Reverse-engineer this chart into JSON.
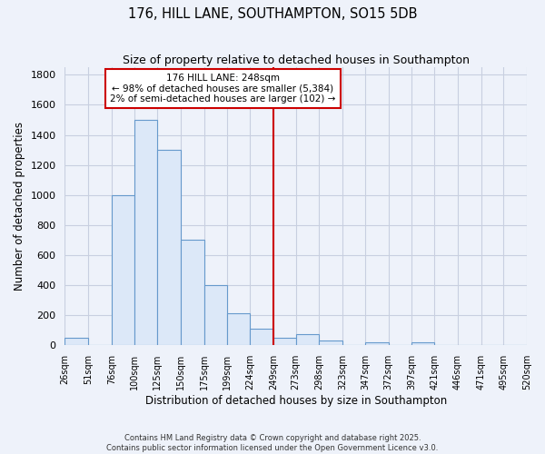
{
  "title": "176, HILL LANE, SOUTHAMPTON, SO15 5DB",
  "subtitle": "Size of property relative to detached houses in Southampton",
  "xlabel": "Distribution of detached houses by size in Southampton",
  "ylabel": "Number of detached properties",
  "bar_color": "#dce8f8",
  "bar_edge_color": "#6699cc",
  "background_color": "#eef2fa",
  "grid_color": "#c8cfe0",
  "bin_labels": [
    "26sqm",
    "51sqm",
    "76sqm",
    "100sqm",
    "125sqm",
    "150sqm",
    "175sqm",
    "199sqm",
    "224sqm",
    "249sqm",
    "273sqm",
    "298sqm",
    "323sqm",
    "347sqm",
    "372sqm",
    "397sqm",
    "421sqm",
    "446sqm",
    "471sqm",
    "495sqm",
    "520sqm"
  ],
  "bin_edges": [
    26,
    51,
    76,
    100,
    125,
    150,
    175,
    199,
    224,
    249,
    273,
    298,
    323,
    347,
    372,
    397,
    421,
    446,
    471,
    495,
    520
  ],
  "bar_heights": [
    50,
    0,
    1000,
    1500,
    1300,
    700,
    400,
    210,
    105,
    50,
    70,
    30,
    0,
    15,
    0,
    15,
    0,
    0,
    0,
    0
  ],
  "vline_x": 249,
  "vline_color": "#cc0000",
  "annotation_title": "176 HILL LANE: 248sqm",
  "annotation_line1": "← 98% of detached houses are smaller (5,384)",
  "annotation_line2": "2% of semi-detached houses are larger (102) →",
  "annotation_box_color": "#ffffff",
  "annotation_box_edge": "#cc0000",
  "ylim": [
    0,
    1850
  ],
  "yticks": [
    0,
    200,
    400,
    600,
    800,
    1000,
    1200,
    1400,
    1600,
    1800
  ],
  "footnote1": "Contains HM Land Registry data © Crown copyright and database right 2025.",
  "footnote2": "Contains public sector information licensed under the Open Government Licence v3.0."
}
